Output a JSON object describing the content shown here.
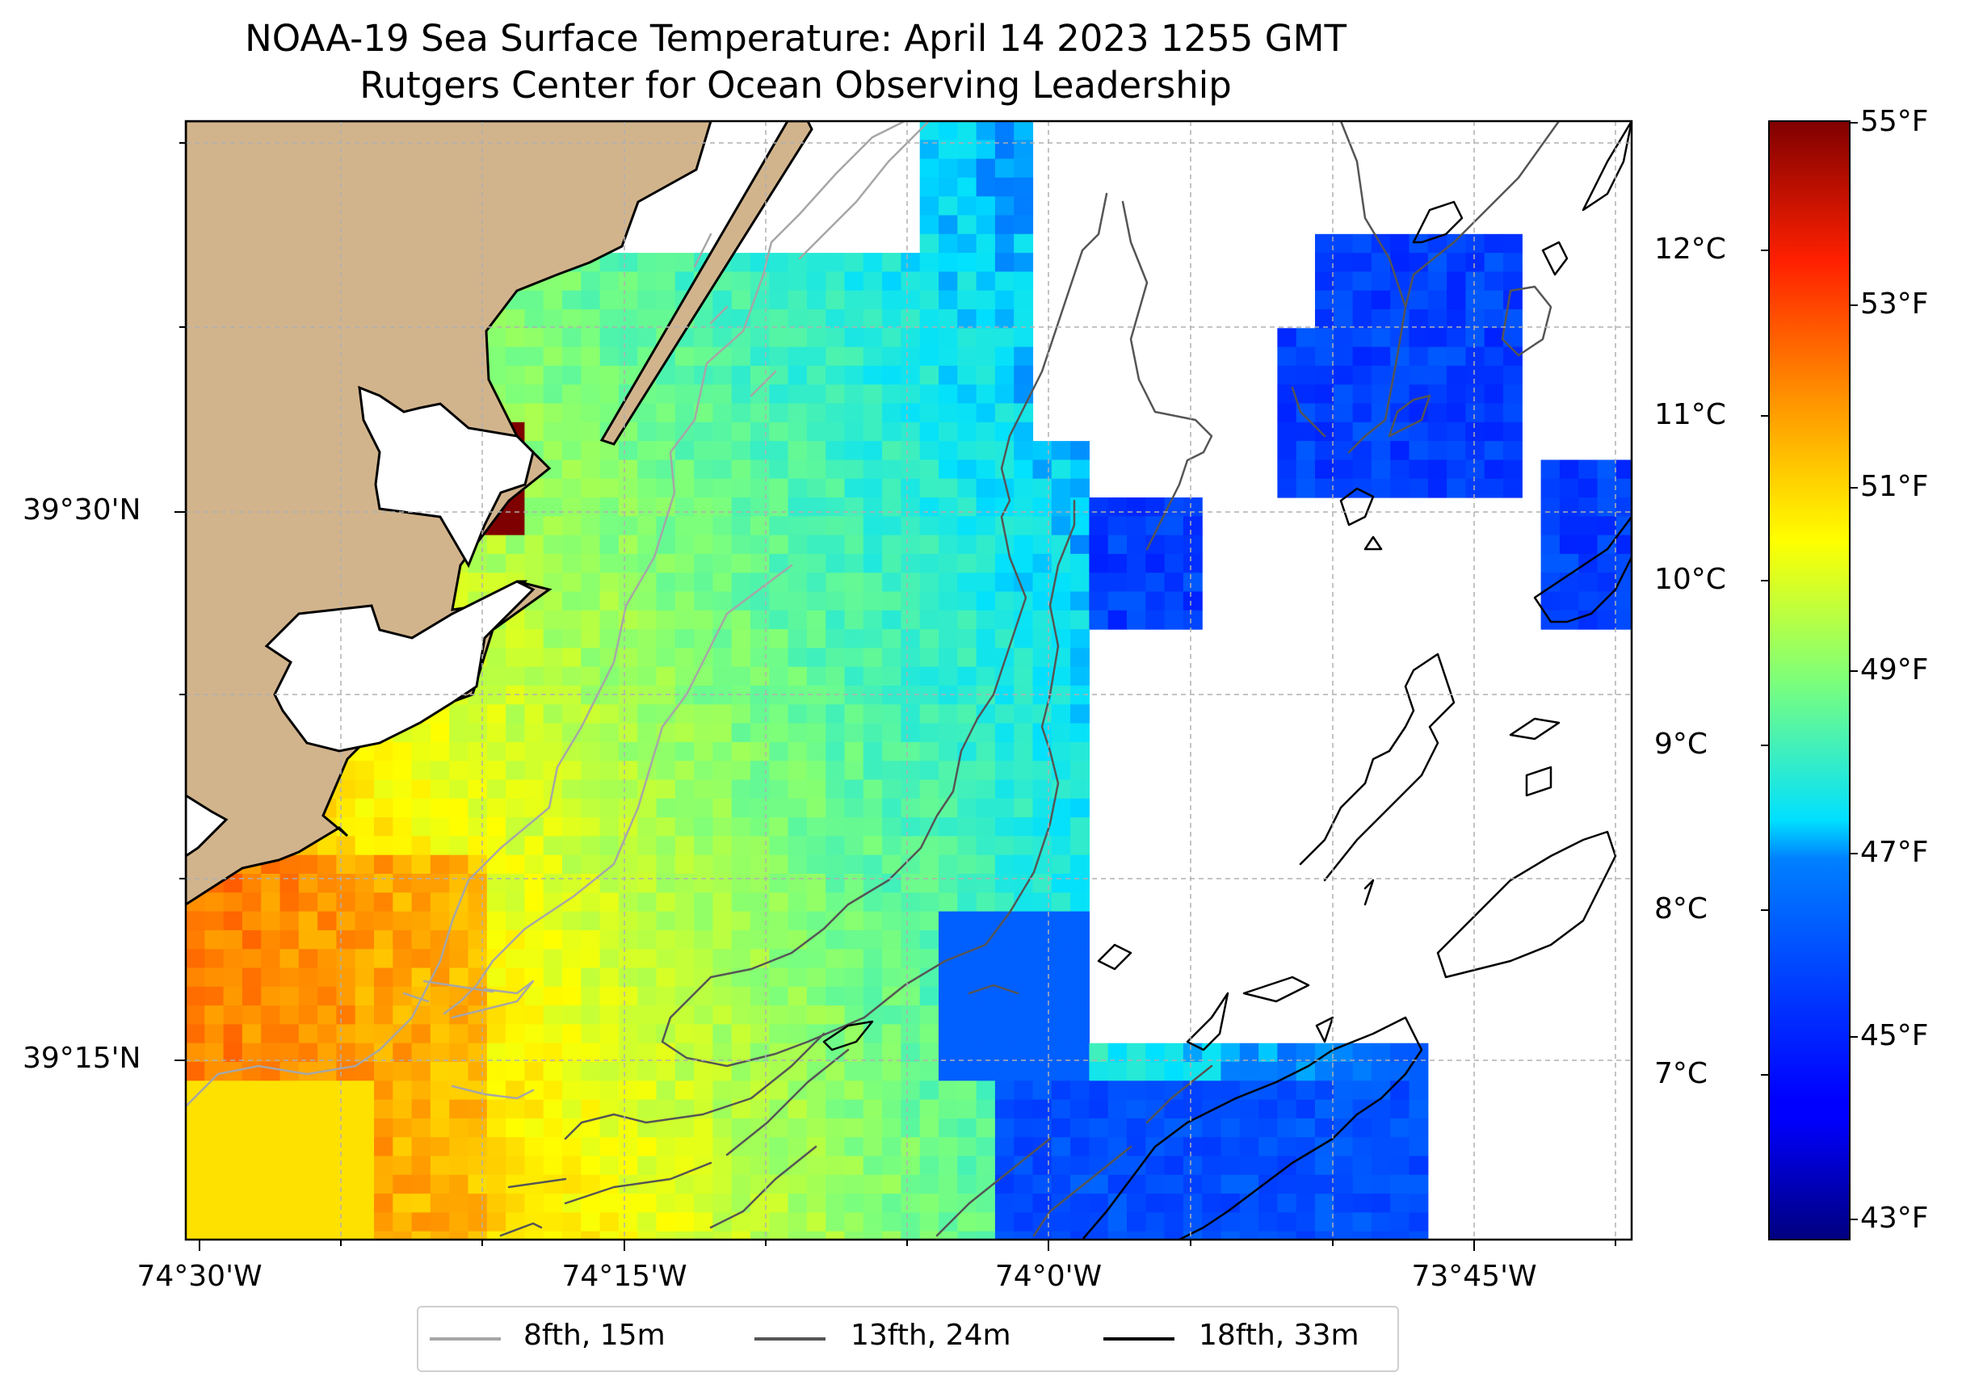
{
  "title": {
    "line1": "NOAA-19 Sea Surface Temperature: April 14 2023 1255 GMT",
    "line2": "Rutgers Center for Ocean Observing Leadership"
  },
  "axes": {
    "lon_labels": [
      "74°30'W",
      "74°15'W",
      "74°0'W",
      "73°45'W"
    ],
    "lat_labels": [
      "39°30'N",
      "39°15'N"
    ]
  },
  "colorbar": {
    "celsius_labels": [
      "12°C",
      "11°C",
      "10°C",
      "9°C",
      "8°C",
      "7°C"
    ],
    "fahrenheit_labels": [
      "55°F",
      "53°F",
      "51°F",
      "49°F",
      "47°F",
      "45°F",
      "43°F"
    ],
    "min_f": 42.8,
    "max_f": 55.0
  },
  "legend": {
    "items": [
      {
        "label": "8fth, 15m",
        "color": "#a6a6a6"
      },
      {
        "label": "13fth, 24m",
        "color": "#555555"
      },
      {
        "label": "18fth, 33m",
        "color": "#000000"
      }
    ]
  },
  "colors": {
    "land": "#d2b48c",
    "grid": "#b0b0b0"
  }
}
